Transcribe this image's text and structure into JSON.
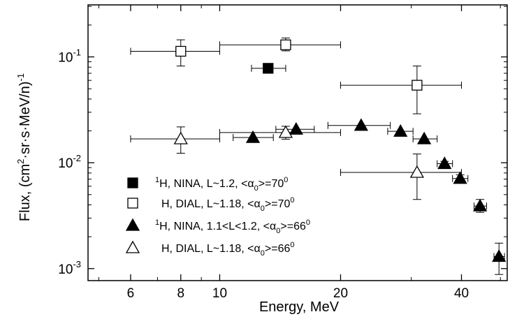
{
  "chart_data": {
    "type": "scatter",
    "x_scale": "log",
    "y_scale": "log",
    "xlim": [
      4.7,
      52
    ],
    "ylim": [
      0.00077,
      0.31
    ],
    "xlabel": "Energy, MeV",
    "ylabel": {
      "prefix": "Flux, (cm",
      "sup1": "2",
      "middle": "·sr·s·MeV/n)",
      "sup2": "-1"
    },
    "x_ticks": [
      {
        "value": 6,
        "label": "6"
      },
      {
        "value": 8,
        "label": "8"
      },
      {
        "value": 10,
        "label": "10"
      },
      {
        "value": 20,
        "label": "20"
      },
      {
        "value": 40,
        "label": "40"
      }
    ],
    "y_ticks": [
      {
        "value": 0.1,
        "base": "10",
        "exp": "-1"
      },
      {
        "value": 0.01,
        "base": "10",
        "exp": "-2"
      },
      {
        "value": 0.001,
        "base": "10",
        "exp": "-3"
      }
    ],
    "series": [
      {
        "name": "¹H, NINA, L~1.2, <α₀>=70⁰",
        "marker": "square",
        "filled": true,
        "legend": {
          "sup": "1",
          "text": "H, NINA, L~1.2, <α",
          "sub": "0",
          "text2": ">=70",
          "sup2": "0"
        },
        "points": [
          {
            "x": 13.2,
            "y": 0.078,
            "xlo": 12.0,
            "xhi": 14.6
          }
        ]
      },
      {
        "name": "H, DIAL, L~1.18, <α₀>=70⁰",
        "marker": "square",
        "filled": false,
        "legend": {
          "sup": "",
          "text": "H, DIAL, L~1.18, <α",
          "sub": "0",
          "text2": ">=70",
          "sup2": "0"
        },
        "points": [
          {
            "x": 8,
            "y": 0.113,
            "xlo": 6,
            "xhi": 10,
            "ylo": 0.082,
            "yhi": 0.145
          },
          {
            "x": 14.6,
            "y": 0.13,
            "xlo": 10,
            "xhi": 20,
            "ylo": 0.114,
            "yhi": 0.151
          },
          {
            "x": 31,
            "y": 0.054,
            "xlo": 20,
            "xhi": 40,
            "ylo": 0.029,
            "yhi": 0.082
          }
        ]
      },
      {
        "name": "¹H, NINA, 1.1<L<1.2, <α₀>=66⁰",
        "marker": "triangle",
        "filled": true,
        "legend": {
          "sup": "1",
          "text": "H, NINA, 1.1<L<1.2, <α",
          "sub": "0",
          "text2": ">=66",
          "sup2": "0"
        },
        "points": [
          {
            "x": 12.1,
            "y": 0.0173,
            "xlo": 10.8,
            "xhi": 13.6
          },
          {
            "x": 15.5,
            "y": 0.0207,
            "xlo": 13.8,
            "xhi": 17.2
          },
          {
            "x": 22.5,
            "y": 0.0225,
            "xlo": 18.6,
            "xhi": 26.6
          },
          {
            "x": 28.2,
            "y": 0.0198,
            "xlo": 26.2,
            "xhi": 30.3
          },
          {
            "x": 32.3,
            "y": 0.0168,
            "xlo": 30.3,
            "xhi": 34.8
          },
          {
            "x": 36.3,
            "y": 0.0098,
            "xlo": 34.8,
            "xhi": 38.0,
            "ylo": 0.0093,
            "yhi": 0.0103
          },
          {
            "x": 39.7,
            "y": 0.0071,
            "xlo": 38.0,
            "xhi": 41.5,
            "ylo": 0.0066,
            "yhi": 0.0077
          },
          {
            "x": 44.5,
            "y": 0.0039,
            "xlo": 43.0,
            "xhi": 46.2,
            "ylo": 0.0034,
            "yhi": 0.0045
          },
          {
            "x": 49.6,
            "y": 0.0013,
            "xlo": 48.2,
            "xhi": 51.2,
            "ylo": 0.00088,
            "yhi": 0.00174
          }
        ]
      },
      {
        "name": "H, DIAL, L~1.18, <α₀>=66⁰",
        "marker": "triangle",
        "filled": false,
        "legend": {
          "sup": "",
          "text": "H, DIAL, L~1.18, <α",
          "sub": "0",
          "text2": ">=66",
          "sup2": "0"
        },
        "points": [
          {
            "x": 8,
            "y": 0.0168,
            "xlo": 6,
            "xhi": 10,
            "ylo": 0.0123,
            "yhi": 0.0218
          },
          {
            "x": 14.6,
            "y": 0.0193,
            "xlo": 10,
            "xhi": 20,
            "ylo": 0.0167,
            "yhi": 0.0221
          },
          {
            "x": 31,
            "y": 0.0081,
            "xlo": 20,
            "xhi": 40,
            "ylo": 0.0045,
            "yhi": 0.0121
          }
        ]
      }
    ]
  }
}
